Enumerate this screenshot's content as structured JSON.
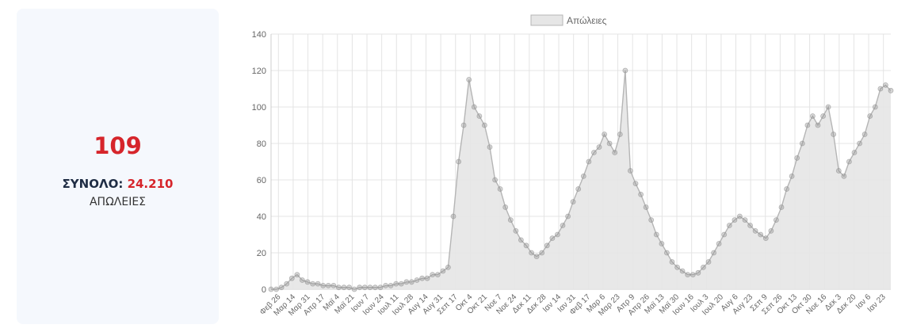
{
  "stat": {
    "value": "109",
    "total_label": "ΣΥΝΟΛΟ:",
    "total_value": "24.210",
    "caption": "ΑΠΩΛΕΙΕΣ"
  },
  "colors": {
    "accent": "#d6252b",
    "label_dark": "#1f2d44",
    "card_bg": "#f5f8fd",
    "area_fill": "#e6e6e6",
    "line": "#b5b5b5",
    "point": "#8c8c8c",
    "grid": "#e4e4e4"
  },
  "chart_data": {
    "type": "area",
    "legend": {
      "label": "Απώλειες",
      "position": "top"
    },
    "ylim": [
      0,
      140
    ],
    "yticks": [
      0,
      20,
      40,
      60,
      80,
      100,
      120,
      140
    ],
    "x_tick_labels": [
      "Φεβ 26",
      "Μαρ 14",
      "Μαρ 31",
      "Απρ 17",
      "Μαϊ 4",
      "Μαϊ 21",
      "Ιουν 7",
      "Ιουν 24",
      "Ιουλ 11",
      "Ιουλ 28",
      "Αυγ 14",
      "Αυγ 31",
      "Σεπ 17",
      "Οκτ 4",
      "Οκτ 21",
      "Νοε 7",
      "Νοε 24",
      "Δεκ 11",
      "Δεκ 28",
      "Ιαν 14",
      "Ιαν 31",
      "Φεβ 17",
      "Μαρ 6",
      "Μαρ 23",
      "Απρ 9",
      "Απρ 26",
      "Μαϊ 13",
      "Μαϊ 30",
      "Ιουν 16",
      "Ιουλ 3",
      "Ιουλ 20",
      "Αυγ 6",
      "Αυγ 23",
      "Σεπ 9",
      "Σεπ 26",
      "Οκτ 13",
      "Οκτ 30",
      "Νοε 16",
      "Δεκ 3",
      "Δεκ 20",
      "Ιαν 6",
      "Ιαν 23"
    ],
    "series": [
      {
        "name": "Απώλειες",
        "values": [
          0,
          0,
          1,
          3,
          6,
          8,
          5,
          4,
          3,
          3,
          2,
          2,
          2,
          1,
          1,
          1,
          0,
          1,
          1,
          1,
          1,
          1,
          2,
          2,
          3,
          3,
          4,
          4,
          5,
          6,
          6,
          8,
          8,
          10,
          12,
          40,
          70,
          90,
          115,
          100,
          95,
          90,
          78,
          60,
          55,
          45,
          38,
          32,
          27,
          24,
          20,
          18,
          20,
          24,
          28,
          30,
          35,
          40,
          48,
          55,
          62,
          70,
          75,
          78,
          85,
          80,
          75,
          85,
          120,
          65,
          58,
          52,
          45,
          38,
          30,
          25,
          20,
          15,
          12,
          10,
          8,
          8,
          9,
          12,
          15,
          20,
          25,
          30,
          35,
          38,
          40,
          38,
          35,
          32,
          30,
          28,
          32,
          38,
          45,
          55,
          62,
          72,
          80,
          90,
          95,
          90,
          95,
          100,
          85,
          65,
          62,
          70,
          75,
          80,
          85,
          95,
          100,
          110,
          112,
          109
        ]
      }
    ]
  }
}
